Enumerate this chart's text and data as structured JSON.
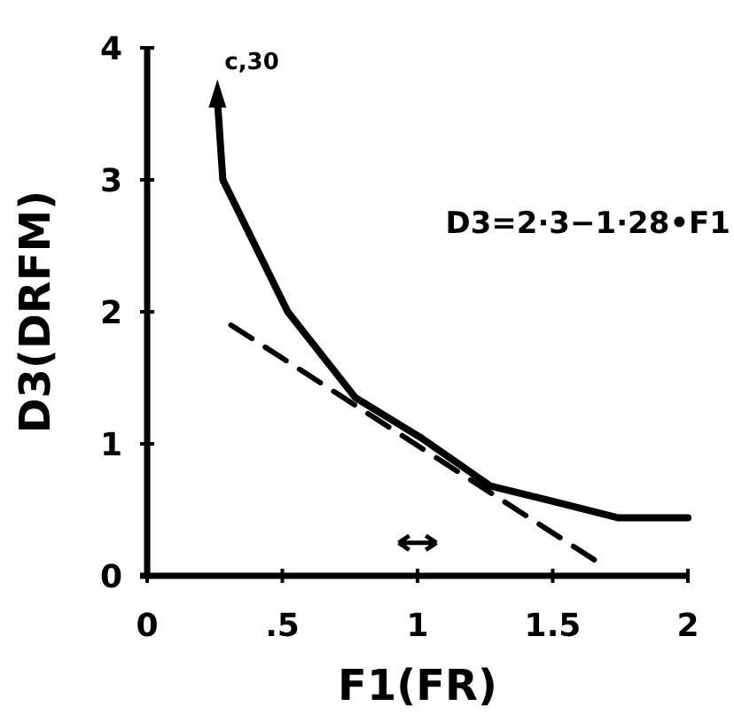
{
  "chart_data": {
    "type": "line",
    "xlabel": "F1(FR)",
    "ylabel": "D3(DRFM)",
    "xlim": [
      0,
      2
    ],
    "ylim": [
      0,
      4
    ],
    "xticks": [
      0,
      {
        "value": 0.5,
        "label": ".5"
      },
      1,
      {
        "value": 1.5,
        "label": "1.5"
      },
      2
    ],
    "yticks": [
      0,
      1,
      2,
      3,
      4
    ],
    "grid": false,
    "marker": "none",
    "series": [
      {
        "color": "#000000",
        "line_style": "solid",
        "x": [
          0.26,
          0.28,
          0.52,
          0.77,
          1.01,
          1.27,
          1.51,
          1.74,
          2.0
        ],
        "values": [
          3.6,
          3.0,
          2.0,
          1.35,
          1.05,
          0.68,
          0.56,
          0.44,
          0.44
        ]
      },
      {
        "color": "#000000",
        "line_style": "dashed",
        "x": [
          0.31,
          1.67
        ],
        "values": [
          1.9,
          0.1
        ]
      }
    ],
    "annotations": [
      {
        "text": "c,30",
        "x": 0.26,
        "y": 3.6
      },
      "D3=2·3−1·28•F1"
    ]
  }
}
